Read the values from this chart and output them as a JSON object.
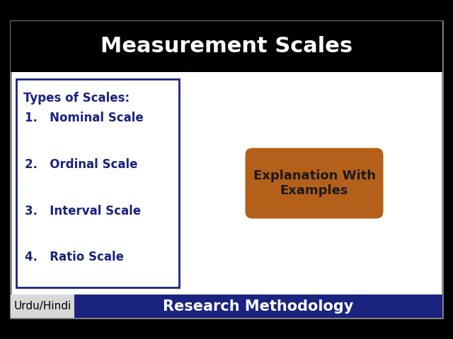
{
  "outer_bg": "#000000",
  "inner_bg": "#ffffff",
  "title_text": "Measurement Scales",
  "title_bg": "#000000",
  "title_color": "#ffffff",
  "title_fontsize": 22,
  "list_title": "Types of Scales:",
  "list_items": [
    "1.   Nominal Scale",
    "2.   Ordinal Scale",
    "3.   Interval Scale",
    "4.   Ratio Scale"
  ],
  "list_text_color": "#1a237e",
  "list_box_edge": "#1a237e",
  "list_box_bg": "#ffffff",
  "button_text": "Explanation With\nExamples",
  "button_bg": "#b5601a",
  "button_text_color": "#1a1a1a",
  "button_fontsize": 13,
  "footer_left_text": "Urdu/Hindi",
  "footer_left_bg": "#d8d8d8",
  "footer_left_color": "#000000",
  "footer_right_text": "Research Methodology",
  "footer_right_bg": "#1a237e",
  "footer_right_color": "#ffffff",
  "footer_fontsize": 11,
  "footer_title_fontsize": 15,
  "outer_border_color": "#888888",
  "inner_border_color": "#888888"
}
